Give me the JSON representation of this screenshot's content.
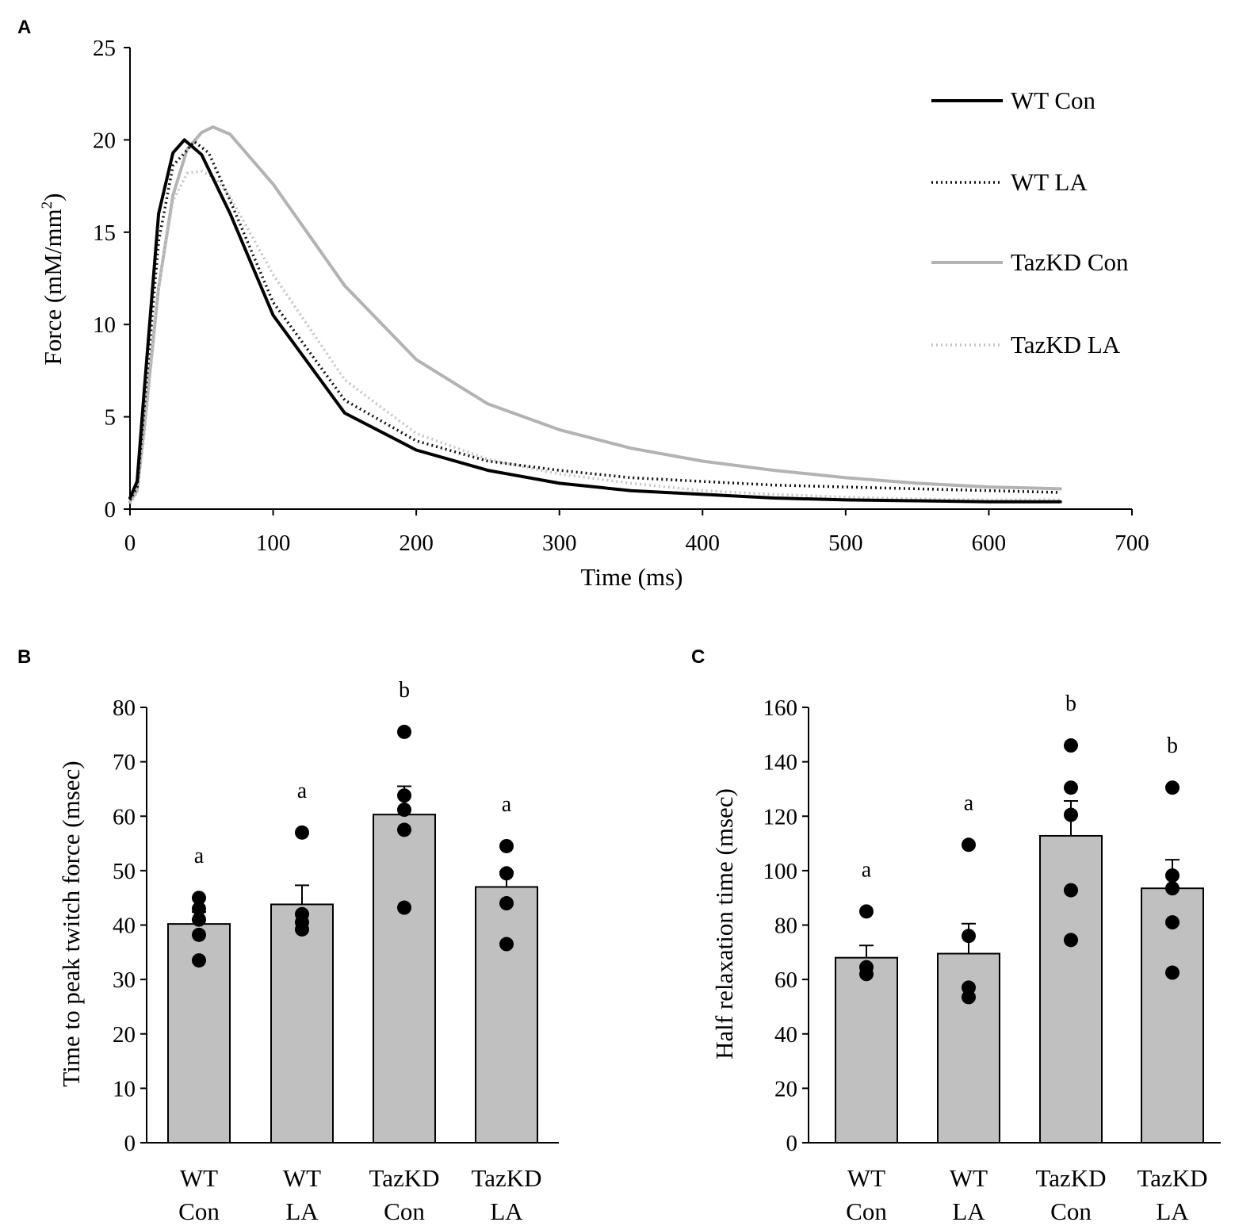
{
  "chart_data": [
    {
      "id": "A",
      "panel_label": "A",
      "type": "line",
      "title": "",
      "xlabel": "Time (ms)",
      "ylabel_main": "Force (mM/mm",
      "ylabel_sup": "2",
      "ylabel_close": ")",
      "xlim": [
        0,
        700
      ],
      "ylim": [
        0,
        25
      ],
      "xticks": [
        "0",
        "100",
        "200",
        "300",
        "400",
        "500",
        "600",
        "700"
      ],
      "yticks": [
        "0",
        "5",
        "10",
        "15",
        "20",
        "25"
      ],
      "legend_position": "top-right",
      "series": [
        {
          "name": "WT Con",
          "color": "#000000",
          "style": "solid",
          "x": [
            0,
            5,
            10,
            20,
            30,
            38,
            50,
            70,
            100,
            150,
            200,
            250,
            300,
            350,
            400,
            450,
            500,
            550,
            600,
            650
          ],
          "y": [
            0.6,
            1.5,
            6.5,
            16.0,
            19.3,
            20.0,
            19.2,
            16.0,
            10.5,
            5.2,
            3.2,
            2.1,
            1.4,
            1.0,
            0.8,
            0.6,
            0.5,
            0.45,
            0.4,
            0.4
          ]
        },
        {
          "name": "WT LA",
          "color": "#111111",
          "style": "dotted",
          "x": [
            0,
            5,
            10,
            20,
            30,
            45,
            55,
            70,
            100,
            150,
            200,
            250,
            300,
            350,
            400,
            450,
            500,
            550,
            600,
            650
          ],
          "y": [
            0.5,
            1.2,
            5.5,
            14.5,
            18.6,
            19.9,
            19.3,
            16.7,
            11.2,
            5.9,
            3.7,
            2.6,
            2.1,
            1.7,
            1.5,
            1.3,
            1.2,
            1.1,
            1.0,
            0.9
          ]
        },
        {
          "name": "TazKD Con",
          "color": "#b3b3b3",
          "style": "solid",
          "x": [
            0,
            5,
            10,
            20,
            30,
            40,
            50,
            58,
            70,
            100,
            150,
            200,
            250,
            300,
            350,
            400,
            450,
            500,
            550,
            600,
            650
          ],
          "y": [
            0.4,
            1.0,
            4.5,
            12.0,
            17.0,
            19.5,
            20.4,
            20.7,
            20.3,
            17.6,
            12.1,
            8.1,
            5.7,
            4.3,
            3.3,
            2.6,
            2.1,
            1.7,
            1.4,
            1.2,
            1.1
          ]
        },
        {
          "name": "TazKD LA",
          "color": "#c4c4c4",
          "style": "dotted",
          "x": [
            0,
            5,
            10,
            20,
            30,
            40,
            50,
            60,
            70,
            100,
            150,
            200,
            250,
            300,
            350,
            400,
            450,
            500,
            550,
            600,
            650
          ],
          "y": [
            0.3,
            0.9,
            4.0,
            12.0,
            16.7,
            18.2,
            18.3,
            17.9,
            16.9,
            12.7,
            7.0,
            4.1,
            2.7,
            1.9,
            1.4,
            1.0,
            0.8,
            0.65,
            0.55,
            0.5,
            0.5
          ]
        }
      ]
    },
    {
      "id": "B",
      "panel_label": "B",
      "type": "bar",
      "title": "",
      "xlabel": "",
      "ylabel": "Time to peak twitch force (msec)",
      "ylim": [
        0,
        80
      ],
      "yticks": [
        "0",
        "10",
        "20",
        "30",
        "40",
        "50",
        "60",
        "70",
        "80"
      ],
      "categories": [
        {
          "line1": "WT",
          "line2": "Con"
        },
        {
          "line1": "WT",
          "line2": "LA"
        },
        {
          "line1": "TazKD",
          "line2": "Con"
        },
        {
          "line1": "TazKD",
          "line2": "LA"
        }
      ],
      "values": [
        40.2,
        43.8,
        60.3,
        47.0
      ],
      "errors": [
        2.2,
        3.5,
        5.2,
        2.8
      ],
      "letters": [
        "a",
        "a",
        "b",
        "a"
      ],
      "points": [
        [
          33.5,
          38.2,
          41.0,
          43.0,
          45.0
        ],
        [
          39.2,
          40.5,
          42.0,
          57.0
        ],
        [
          43.2,
          57.5,
          61.2,
          63.8,
          75.5
        ],
        [
          36.5,
          44.0,
          49.5,
          54.5
        ]
      ],
      "bar_color": "#c0c0c0",
      "point_color": "#000000"
    },
    {
      "id": "C",
      "panel_label": "C",
      "type": "bar",
      "title": "",
      "xlabel": "",
      "ylabel": "Half relaxation time (msec)",
      "ylim": [
        0,
        160
      ],
      "yticks": [
        "0",
        "20",
        "40",
        "60",
        "80",
        "100",
        "120",
        "140",
        "160"
      ],
      "categories": [
        {
          "line1": "WT",
          "line2": "Con"
        },
        {
          "line1": "WT",
          "line2": "LA"
        },
        {
          "line1": "TazKD",
          "line2": "Con"
        },
        {
          "line1": "TazKD",
          "line2": "LA"
        }
      ],
      "values": [
        68.0,
        69.5,
        112.8,
        93.5
      ],
      "errors": [
        4.5,
        11.0,
        12.8,
        10.5
      ],
      "letters": [
        "a",
        "a",
        "b",
        "b"
      ],
      "points": [
        [
          62.0,
          64.5,
          85.0
        ],
        [
          53.5,
          57.0,
          76.0,
          109.5
        ],
        [
          74.5,
          92.8,
          120.5,
          130.5,
          146.0
        ],
        [
          62.5,
          81.0,
          93.5,
          98.2,
          130.5
        ]
      ],
      "bar_color": "#c0c0c0",
      "point_color": "#000000"
    }
  ]
}
